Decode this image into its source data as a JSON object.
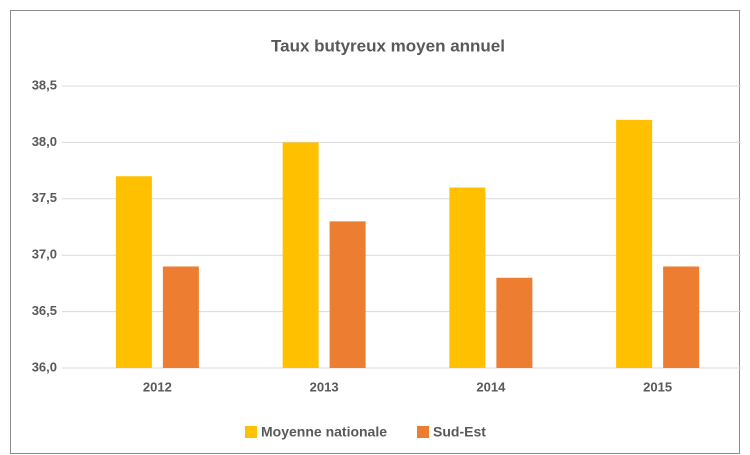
{
  "chart_data": {
    "type": "bar",
    "title": "Taux butyreux moyen annuel",
    "categories": [
      "2012",
      "2013",
      "2014",
      "2015"
    ],
    "series": [
      {
        "name": "Moyenne nationale",
        "color": "#FFC000",
        "values": [
          37.7,
          38.0,
          37.6,
          38.2
        ]
      },
      {
        "name": "Sud-Est",
        "color": "#ED7D31",
        "values": [
          36.9,
          37.3,
          36.8,
          36.9
        ]
      }
    ],
    "ylim": [
      36.0,
      38.5
    ],
    "yticks": [
      {
        "value": 36.0,
        "label": "36,0"
      },
      {
        "value": 36.5,
        "label": "36,5"
      },
      {
        "value": 37.0,
        "label": "37,0"
      },
      {
        "value": 37.5,
        "label": "37,5"
      },
      {
        "value": 38.0,
        "label": "38,0"
      },
      {
        "value": 38.5,
        "label": "38,5"
      }
    ],
    "grid": true,
    "legend": "bottom"
  }
}
